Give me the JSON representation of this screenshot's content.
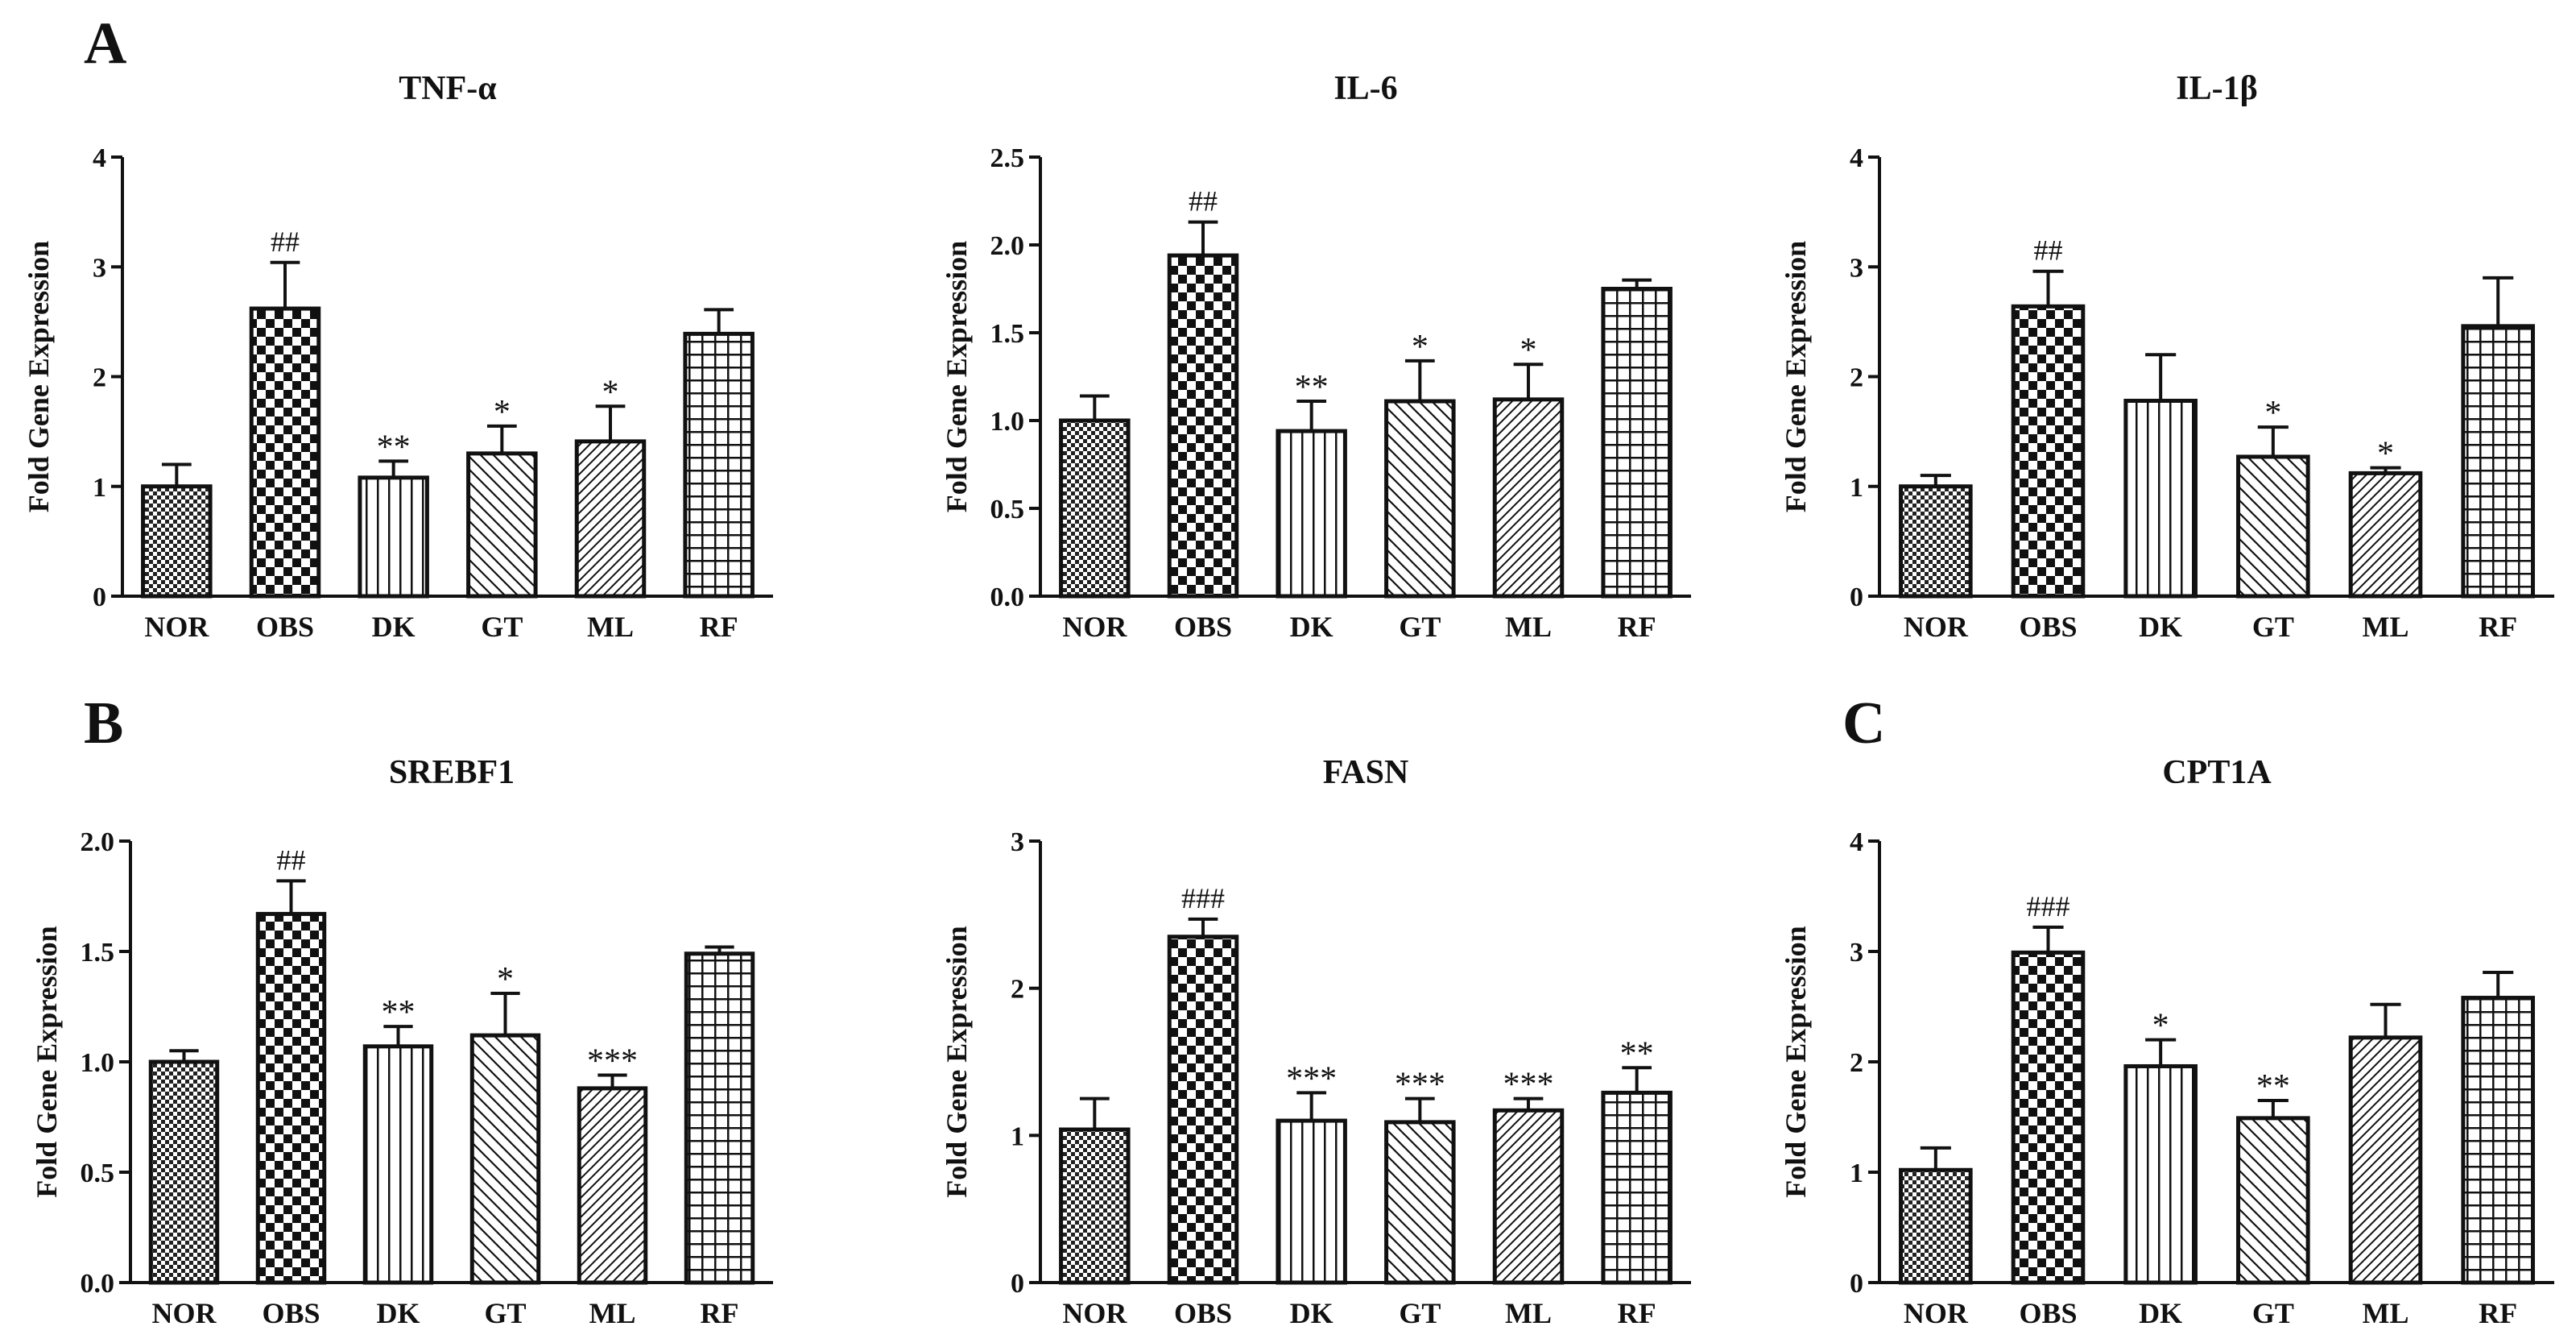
{
  "panel_labels": {
    "A": "A",
    "B": "B",
    "C": "C"
  },
  "colors": {
    "ink": "#111111",
    "background": "#ffffff"
  },
  "chart_data": [
    {
      "type": "bar",
      "panel": "A",
      "title": "TNF-α",
      "ylabel": "Fold Gene Expression",
      "xlabel": "",
      "categories": [
        "NOR",
        "OBS",
        "DK",
        "GT",
        "ML",
        "RF"
      ],
      "patterns": [
        "fine-check",
        "checker",
        "vertical",
        "diag-back",
        "diag-fwd",
        "grid"
      ],
      "values": [
        1.0,
        2.62,
        1.08,
        1.3,
        1.41,
        2.39
      ],
      "errors": [
        0.2,
        0.42,
        0.15,
        0.25,
        0.32,
        0.22
      ],
      "annotations": [
        "",
        "##",
        "**",
        "*",
        "*",
        ""
      ],
      "ylim": [
        0,
        4
      ],
      "yticks": [
        "0",
        "1",
        "2",
        "3",
        "4"
      ],
      "ytick_values": [
        0,
        1,
        2,
        3,
        4
      ]
    },
    {
      "type": "bar",
      "panel": "A",
      "title": "IL-6",
      "ylabel": "Fold Gene Expression",
      "xlabel": "",
      "categories": [
        "NOR",
        "OBS",
        "DK",
        "GT",
        "ML",
        "RF"
      ],
      "patterns": [
        "fine-check",
        "checker",
        "vertical",
        "diag-back",
        "diag-fwd",
        "grid"
      ],
      "values": [
        1.0,
        1.94,
        0.94,
        1.11,
        1.12,
        1.75
      ],
      "errors": [
        0.14,
        0.19,
        0.17,
        0.23,
        0.2,
        0.05
      ],
      "annotations": [
        "",
        "##",
        "**",
        "*",
        "*",
        ""
      ],
      "ylim": [
        0,
        2.5
      ],
      "yticks": [
        "0.0",
        "0.5",
        "1.0",
        "1.5",
        "2.0",
        "2.5"
      ],
      "ytick_values": [
        0,
        0.5,
        1,
        1.5,
        2,
        2.5
      ]
    },
    {
      "type": "bar",
      "panel": "A",
      "title": "IL-1β",
      "ylabel": "Fold Gene Expression",
      "xlabel": "",
      "categories": [
        "NOR",
        "OBS",
        "DK",
        "GT",
        "ML",
        "RF"
      ],
      "patterns": [
        "fine-check",
        "checker",
        "vertical",
        "diag-back",
        "diag-fwd",
        "grid"
      ],
      "values": [
        1.0,
        2.64,
        1.78,
        1.27,
        1.12,
        2.46
      ],
      "errors": [
        0.1,
        0.32,
        0.42,
        0.27,
        0.05,
        0.44
      ],
      "annotations": [
        "",
        "##",
        "",
        "*",
        "*",
        ""
      ],
      "ylim": [
        0,
        4
      ],
      "yticks": [
        "0",
        "1",
        "2",
        "3",
        "4"
      ],
      "ytick_values": [
        0,
        1,
        2,
        3,
        4
      ]
    },
    {
      "type": "bar",
      "panel": "B",
      "title": "SREBF1",
      "ylabel": "Fold Gene Expression",
      "xlabel": "",
      "categories": [
        "NOR",
        "OBS",
        "DK",
        "GT",
        "ML",
        "RF"
      ],
      "patterns": [
        "fine-check",
        "checker",
        "vertical",
        "diag-back",
        "diag-fwd",
        "grid"
      ],
      "values": [
        1.0,
        1.67,
        1.07,
        1.12,
        0.88,
        1.49
      ],
      "errors": [
        0.05,
        0.15,
        0.09,
        0.19,
        0.06,
        0.03
      ],
      "annotations": [
        "",
        "##",
        "**",
        "*",
        "***",
        ""
      ],
      "ylim": [
        0,
        2
      ],
      "yticks": [
        "0.0",
        "0.5",
        "1.0",
        "1.5",
        "2.0"
      ],
      "ytick_values": [
        0,
        0.5,
        1,
        1.5,
        2
      ]
    },
    {
      "type": "bar",
      "panel": "B",
      "title": "FASN",
      "ylabel": "Fold Gene Expression",
      "xlabel": "",
      "categories": [
        "NOR",
        "OBS",
        "DK",
        "GT",
        "ML",
        "RF"
      ],
      "patterns": [
        "fine-check",
        "checker",
        "vertical",
        "diag-back",
        "diag-fwd",
        "grid"
      ],
      "values": [
        1.04,
        2.35,
        1.1,
        1.09,
        1.17,
        1.29
      ],
      "errors": [
        0.21,
        0.12,
        0.19,
        0.16,
        0.08,
        0.17
      ],
      "annotations": [
        "",
        "###",
        "***",
        "***",
        "***",
        "**"
      ],
      "ylim": [
        0,
        3
      ],
      "yticks": [
        "0",
        "1",
        "2",
        "3"
      ],
      "ytick_values": [
        0,
        1,
        2,
        3
      ]
    },
    {
      "type": "bar",
      "panel": "C",
      "title": "CPT1A",
      "ylabel": "Fold Gene Expression",
      "xlabel": "",
      "categories": [
        "NOR",
        "OBS",
        "DK",
        "GT",
        "ML",
        "RF"
      ],
      "patterns": [
        "fine-check",
        "checker",
        "vertical",
        "diag-back",
        "diag-fwd",
        "grid"
      ],
      "values": [
        1.02,
        2.99,
        1.96,
        1.49,
        2.22,
        2.58
      ],
      "errors": [
        0.2,
        0.23,
        0.24,
        0.16,
        0.3,
        0.23
      ],
      "annotations": [
        "",
        "###",
        "*",
        "**",
        "",
        ""
      ],
      "ylim": [
        0,
        4
      ],
      "yticks": [
        "0",
        "1",
        "2",
        "3",
        "4"
      ],
      "ytick_values": [
        0,
        1,
        2,
        3,
        4
      ]
    }
  ]
}
